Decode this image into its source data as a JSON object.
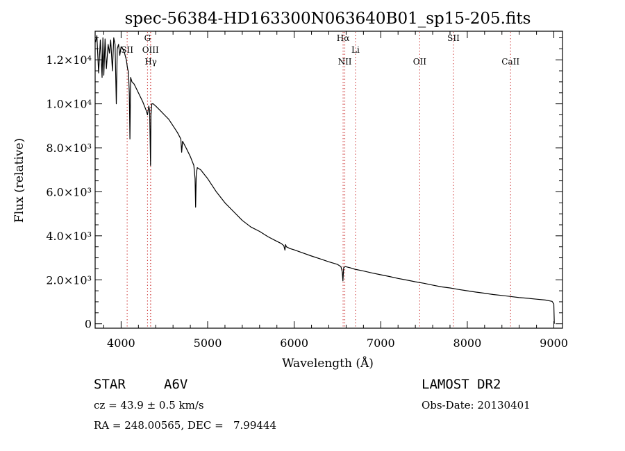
{
  "chart_data": {
    "type": "line",
    "title": "spec-56384-HD163300N063640B01_sp15-205.fits",
    "xlabel": "Wavelength (Å)",
    "ylabel": "Flux (relative)",
    "xlim": [
      3700,
      9100
    ],
    "ylim": [
      -200,
      13300
    ],
    "x_ticks": [
      4000,
      5000,
      6000,
      7000,
      8000,
      9000
    ],
    "y_ticks": [
      {
        "value": 0,
        "label": "0"
      },
      {
        "value": 2000,
        "label": "2.0×10³"
      },
      {
        "value": 4000,
        "label": "4.0×10³"
      },
      {
        "value": 6000,
        "label": "6.0×10³"
      },
      {
        "value": 8000,
        "label": "8.0×10³"
      },
      {
        "value": 10000,
        "label": "1.0×10⁴"
      },
      {
        "value": 12000,
        "label": "1.2×10⁴"
      }
    ],
    "grid": false,
    "line_markers": [
      {
        "label": "SII",
        "x": 4070
      },
      {
        "label": "G",
        "x": 4305
      },
      {
        "label": "OIII",
        "x": 4340
      },
      {
        "label": "Hγ",
        "x": 4342
      },
      {
        "label": "Hα",
        "x": 6565
      },
      {
        "label": "NII",
        "x": 6585
      },
      {
        "label": "Li",
        "x": 6708
      },
      {
        "label": "OII",
        "x": 7450
      },
      {
        "label": "SII",
        "x": 7840
      },
      {
        "label": "CaII",
        "x": 8500
      }
    ],
    "marker_color": "#cc3333",
    "series": [
      {
        "x": [
          3705,
          3720,
          3740,
          3760,
          3780,
          3790,
          3800,
          3815,
          3830,
          3850,
          3865,
          3880,
          3900,
          3915,
          3930,
          3945,
          3955,
          3970,
          3985,
          4000,
          4020,
          4040,
          4060,
          4075,
          4085,
          4095,
          4102,
          4110,
          4125,
          4150,
          4175,
          4200,
          4225,
          4250,
          4270,
          4290,
          4305,
          4320,
          4330,
          4340,
          4345,
          4355,
          4370,
          4400,
          4450,
          4500,
          4550,
          4600,
          4650,
          4690,
          4700,
          4710,
          4750,
          4800,
          4840,
          4855,
          4861,
          4868,
          4880,
          4920,
          4960,
          5000,
          5100,
          5200,
          5300,
          5400,
          5500,
          5600,
          5700,
          5800,
          5850,
          5880,
          5893,
          5900,
          5910,
          5950,
          6000,
          6100,
          6200,
          6300,
          6400,
          6500,
          6540,
          6555,
          6563,
          6572,
          6590,
          6650,
          6700,
          6800,
          6900,
          7000,
          7100,
          7200,
          7300,
          7400,
          7500,
          7600,
          7700,
          7800,
          7900,
          8000,
          8100,
          8200,
          8300,
          8400,
          8500,
          8600,
          8700,
          8800,
          8900,
          8980,
          9000,
          9005
        ],
        "values": [
          12800,
          13100,
          11400,
          12900,
          11200,
          13000,
          11300,
          12950,
          11600,
          12700,
          12300,
          12900,
          11500,
          13000,
          12700,
          10000,
          12500,
          12700,
          12200,
          12600,
          12500,
          12300,
          12000,
          11600,
          11450,
          10500,
          8400,
          11200,
          11000,
          10900,
          10700,
          10500,
          10300,
          10100,
          9900,
          9700,
          9500,
          9900,
          9700,
          7200,
          9500,
          10000,
          10000,
          9900,
          9700,
          9500,
          9300,
          9000,
          8700,
          8400,
          7800,
          8300,
          8000,
          7600,
          7200,
          6600,
          5300,
          6800,
          7100,
          7000,
          6800,
          6600,
          6000,
          5500,
          5100,
          4700,
          4400,
          4200,
          3950,
          3750,
          3650,
          3550,
          3350,
          3600,
          3500,
          3420,
          3360,
          3220,
          3080,
          2950,
          2820,
          2700,
          2600,
          2380,
          1950,
          2550,
          2600,
          2540,
          2480,
          2400,
          2310,
          2230,
          2150,
          2060,
          1990,
          1910,
          1840,
          1760,
          1680,
          1630,
          1560,
          1500,
          1440,
          1390,
          1330,
          1290,
          1240,
          1190,
          1160,
          1120,
          1080,
          1020,
          900,
          0
        ]
      }
    ]
  },
  "info": {
    "object_type": "STAR",
    "spectral_class": "A6V",
    "survey": "LAMOST DR2",
    "cz": "cz = 43.9 ± 0.5 km/s",
    "obs_date": "Obs-Date: 20130401",
    "coords": "RA = 248.00565, DEC =   7.99444"
  }
}
